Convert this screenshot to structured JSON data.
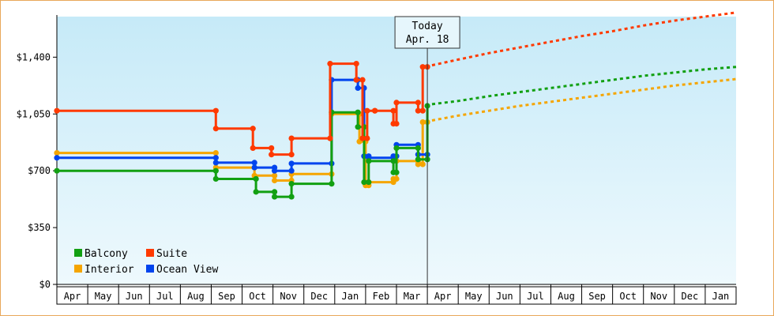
{
  "chart_data": {
    "type": "line",
    "y_ticks": [
      "$0",
      "$350",
      "$700",
      "$1,050",
      "$1,400"
    ],
    "y_tick_values": [
      0,
      350,
      700,
      1050,
      1400
    ],
    "ylim": [
      0,
      1650
    ],
    "x_ticks": [
      "Apr",
      "May",
      "Jun",
      "Jul",
      "Aug",
      "Sep",
      "Oct",
      "Nov",
      "Dec",
      "Jan",
      "Feb",
      "Mar",
      "Apr",
      "May",
      "Jun",
      "Jul",
      "Aug",
      "Sep",
      "Oct",
      "Nov",
      "Dec",
      "Jan"
    ],
    "today": {
      "title": "Today",
      "date": "Apr. 18",
      "month_index": 12.0
    },
    "series": [
      {
        "name": "Balcony",
        "color": "#12a012",
        "points": [
          [
            0,
            700
          ],
          [
            5.15,
            700
          ],
          [
            5.15,
            650
          ],
          [
            6.45,
            650
          ],
          [
            6.45,
            570
          ],
          [
            7.05,
            570
          ],
          [
            7.05,
            540
          ],
          [
            7.6,
            540
          ],
          [
            7.6,
            620
          ],
          [
            8.9,
            620
          ],
          [
            8.9,
            1060
          ],
          [
            9.75,
            1060
          ],
          [
            9.75,
            970
          ],
          [
            9.95,
            970
          ],
          [
            9.95,
            630
          ],
          [
            10.1,
            630
          ],
          [
            10.1,
            760
          ],
          [
            10.9,
            760
          ],
          [
            10.9,
            690
          ],
          [
            11.0,
            690
          ],
          [
            11.0,
            840
          ],
          [
            11.7,
            840
          ],
          [
            11.7,
            770
          ],
          [
            12.0,
            770
          ],
          [
            12.0,
            1100
          ]
        ],
        "forecast": [
          [
            12.15,
            1110
          ],
          [
            13,
            1130
          ],
          [
            14,
            1160
          ],
          [
            15,
            1185
          ],
          [
            16,
            1210
          ],
          [
            17,
            1235
          ],
          [
            18,
            1260
          ],
          [
            19,
            1285
          ],
          [
            20,
            1305
          ],
          [
            21,
            1325
          ],
          [
            22,
            1340
          ]
        ]
      },
      {
        "name": "Suite",
        "color": "#ff3a00",
        "points": [
          [
            0,
            1070
          ],
          [
            5.15,
            1070
          ],
          [
            5.15,
            960
          ],
          [
            6.35,
            960
          ],
          [
            6.35,
            840
          ],
          [
            6.95,
            840
          ],
          [
            6.95,
            800
          ],
          [
            7.6,
            800
          ],
          [
            7.6,
            900
          ],
          [
            8.85,
            900
          ],
          [
            8.85,
            1360
          ],
          [
            9.7,
            1360
          ],
          [
            9.7,
            1260
          ],
          [
            9.9,
            1260
          ],
          [
            9.9,
            900
          ],
          [
            10.05,
            900
          ],
          [
            10.05,
            1070
          ],
          [
            10.3,
            1070
          ],
          [
            10.3,
            1070
          ],
          [
            10.9,
            1070
          ],
          [
            10.9,
            990
          ],
          [
            11.0,
            990
          ],
          [
            11.0,
            1120
          ],
          [
            11.7,
            1120
          ],
          [
            11.7,
            1070
          ],
          [
            11.85,
            1070
          ],
          [
            11.85,
            1340
          ],
          [
            12.0,
            1340
          ]
        ],
        "forecast": [
          [
            12.15,
            1350
          ],
          [
            13,
            1385
          ],
          [
            14,
            1425
          ],
          [
            15,
            1460
          ],
          [
            16,
            1495
          ],
          [
            17,
            1530
          ],
          [
            18,
            1560
          ],
          [
            19,
            1595
          ],
          [
            20,
            1625
          ],
          [
            21,
            1650
          ],
          [
            22,
            1675
          ]
        ]
      },
      {
        "name": "Interior",
        "color": "#f5a500",
        "points": [
          [
            0,
            810
          ],
          [
            5.15,
            810
          ],
          [
            5.15,
            720
          ],
          [
            6.4,
            720
          ],
          [
            6.4,
            670
          ],
          [
            7.05,
            670
          ],
          [
            7.05,
            640
          ],
          [
            7.6,
            640
          ],
          [
            7.6,
            680
          ],
          [
            8.9,
            680
          ],
          [
            8.9,
            1050
          ],
          [
            9.8,
            1050
          ],
          [
            9.8,
            880
          ],
          [
            10.0,
            880
          ],
          [
            10.0,
            610
          ],
          [
            10.1,
            610
          ],
          [
            10.1,
            630
          ],
          [
            10.9,
            630
          ],
          [
            10.9,
            650
          ],
          [
            11.0,
            650
          ],
          [
            11.0,
            760
          ],
          [
            11.7,
            760
          ],
          [
            11.7,
            740
          ],
          [
            11.85,
            740
          ],
          [
            11.85,
            1000
          ],
          [
            12.0,
            1000
          ]
        ],
        "forecast": [
          [
            12.15,
            1010
          ],
          [
            13,
            1040
          ],
          [
            14,
            1070
          ],
          [
            15,
            1100
          ],
          [
            16,
            1125
          ],
          [
            17,
            1150
          ],
          [
            18,
            1175
          ],
          [
            19,
            1200
          ],
          [
            20,
            1225
          ],
          [
            21,
            1245
          ],
          [
            22,
            1265
          ]
        ]
      },
      {
        "name": "Ocean View",
        "color": "#0044ee",
        "points": [
          [
            0,
            780
          ],
          [
            5.15,
            780
          ],
          [
            5.15,
            750
          ],
          [
            6.4,
            750
          ],
          [
            6.4,
            720
          ],
          [
            7.05,
            720
          ],
          [
            7.05,
            700
          ],
          [
            7.6,
            700
          ],
          [
            7.6,
            745
          ],
          [
            8.9,
            745
          ],
          [
            8.9,
            1260
          ],
          [
            9.75,
            1260
          ],
          [
            9.75,
            1210
          ],
          [
            9.95,
            1210
          ],
          [
            9.95,
            790
          ],
          [
            10.1,
            790
          ],
          [
            10.1,
            780
          ],
          [
            10.9,
            780
          ],
          [
            10.9,
            790
          ],
          [
            11.0,
            790
          ],
          [
            11.0,
            860
          ],
          [
            11.7,
            860
          ],
          [
            11.7,
            800
          ],
          [
            12.0,
            800
          ]
        ],
        "forecast": []
      }
    ],
    "legend": [
      {
        "label": "Balcony",
        "color": "#12a012"
      },
      {
        "label": "Suite",
        "color": "#ff3a00"
      },
      {
        "label": "Interior",
        "color": "#f5a500"
      },
      {
        "label": "Ocean View",
        "color": "#0044ee"
      }
    ],
    "legend_placement": "bottom-left"
  }
}
